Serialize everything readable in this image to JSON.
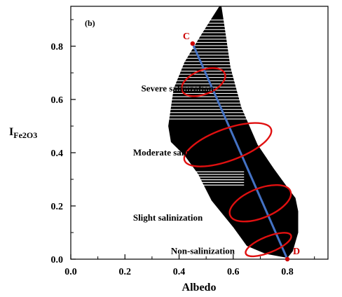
{
  "chart_data": {
    "type": "scatter",
    "panel_label": "(b)",
    "xlabel": "Albedo",
    "ylabel_main": "I",
    "ylabel_sub": "Fe2O3",
    "xlim": [
      0.0,
      0.95
    ],
    "ylim": [
      0.0,
      0.95
    ],
    "x_ticks": [
      0.0,
      0.2,
      0.4,
      0.6,
      0.8
    ],
    "y_ticks": [
      0.0,
      0.2,
      0.4,
      0.6,
      0.8
    ],
    "x_tick_labels": [
      "0.0",
      "0.2",
      "0.4",
      "0.6",
      "0.8"
    ],
    "y_tick_labels": [
      "0.0",
      "0.2",
      "0.4",
      "0.6",
      "0.8"
    ],
    "scatter_envelope": {
      "upper": [
        [
          0.38,
          0.64
        ],
        [
          0.42,
          0.74
        ],
        [
          0.48,
          0.84
        ],
        [
          0.53,
          0.92
        ],
        [
          0.555,
          0.96
        ],
        [
          0.57,
          0.86
        ],
        [
          0.59,
          0.72
        ],
        [
          0.63,
          0.57
        ],
        [
          0.69,
          0.43
        ],
        [
          0.75,
          0.34
        ],
        [
          0.8,
          0.27
        ],
        [
          0.83,
          0.23
        ],
        [
          0.84,
          0.18
        ],
        [
          0.84,
          0.1
        ],
        [
          0.82,
          0.03
        ],
        [
          0.8,
          0.005
        ]
      ],
      "lower": [
        [
          0.8,
          0.005
        ],
        [
          0.72,
          0.02
        ],
        [
          0.65,
          0.05
        ],
        [
          0.6,
          0.12
        ],
        [
          0.52,
          0.22
        ],
        [
          0.47,
          0.32
        ],
        [
          0.42,
          0.39
        ],
        [
          0.37,
          0.44
        ],
        [
          0.36,
          0.5
        ],
        [
          0.37,
          0.57
        ],
        [
          0.38,
          0.64
        ]
      ]
    },
    "regression_line": {
      "x": [
        0.45,
        0.8
      ],
      "y": [
        0.81,
        0.0
      ],
      "color": "#4472c4"
    },
    "endpoints": [
      {
        "label": "C",
        "x": 0.45,
        "y": 0.81
      },
      {
        "label": "D",
        "x": 0.8,
        "y": 0.0
      }
    ],
    "regions": [
      {
        "label": "Severe salinization",
        "cx": 0.49,
        "cy": 0.665,
        "rx": 0.085,
        "ry": 0.045,
        "angle_deg": -22,
        "label_x": 0.26,
        "label_y": 0.63
      },
      {
        "label": "Moderate salinization",
        "cx": 0.58,
        "cy": 0.43,
        "rx": 0.17,
        "ry": 0.06,
        "angle_deg": -20,
        "label_x": 0.23,
        "label_y": 0.39
      },
      {
        "label": "Slight salinization",
        "cx": 0.7,
        "cy": 0.21,
        "rx": 0.12,
        "ry": 0.055,
        "angle_deg": -22,
        "label_x": 0.23,
        "label_y": 0.145
      },
      {
        "label": "Non-salinization",
        "cx": 0.73,
        "cy": 0.055,
        "rx": 0.09,
        "ry": 0.03,
        "angle_deg": -22,
        "label_x": 0.37,
        "label_y": 0.02
      }
    ],
    "colors": {
      "points": "#000000",
      "regions": "#e01010",
      "endpoints": "#cc0000"
    }
  }
}
